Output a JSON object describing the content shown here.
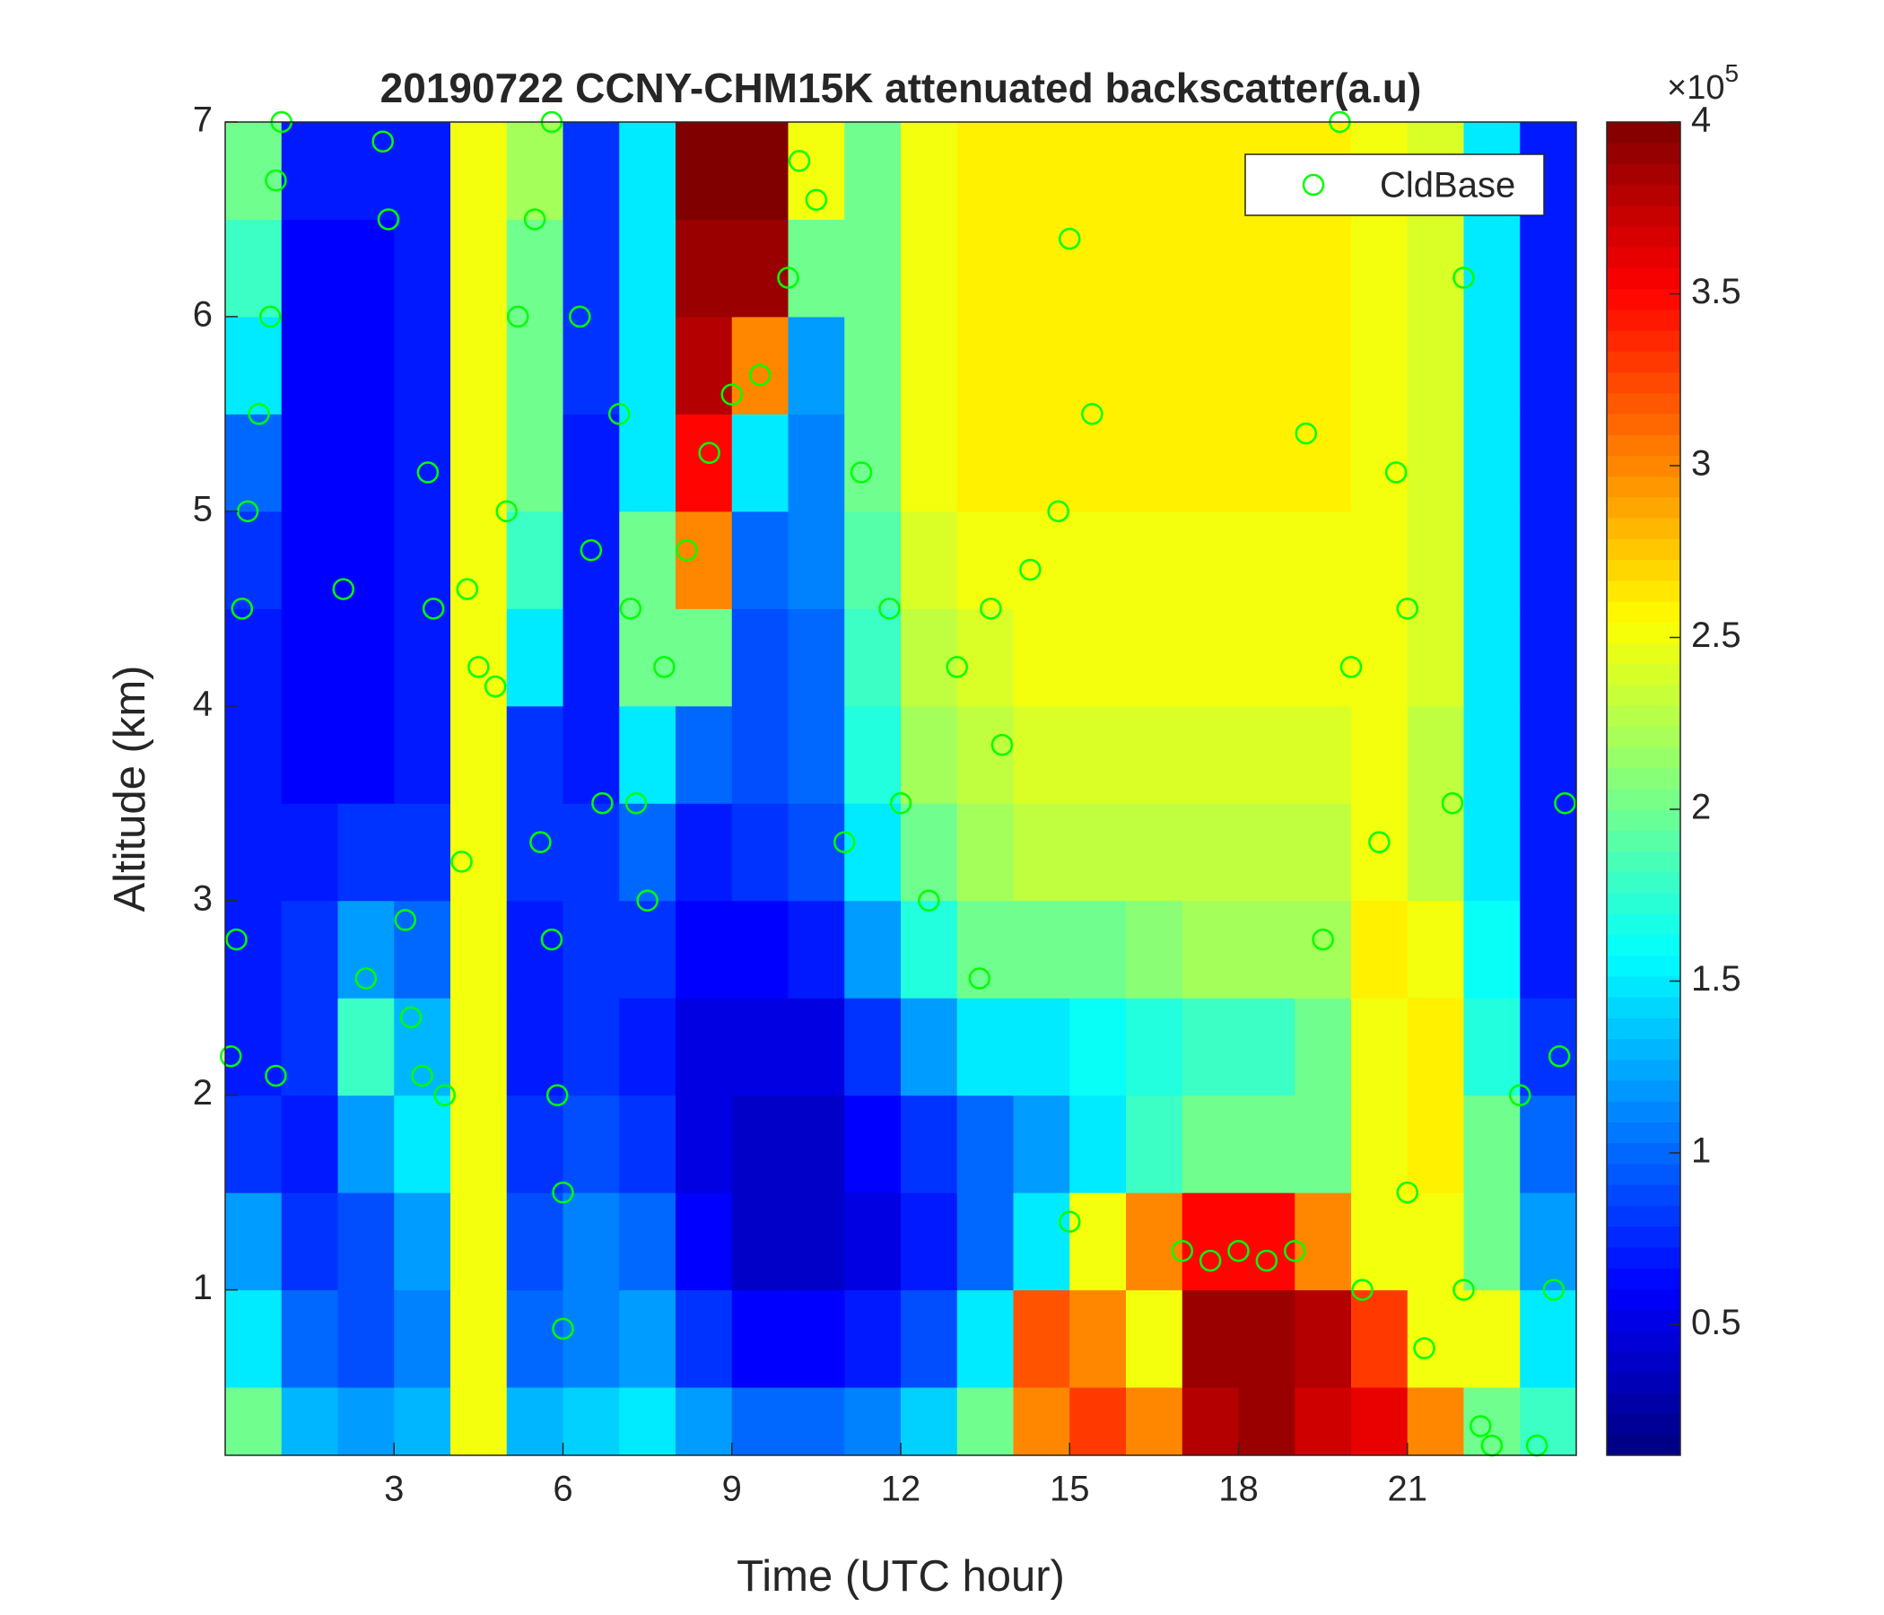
{
  "chart_data": {
    "type": "heatmap",
    "title": "20190722 CCNY-CHM15K attenuated backscatter(a.u)",
    "xlabel": "Time (UTC hour)",
    "ylabel": "Altitude (km)",
    "colormap": "jet",
    "xbins": [
      0,
      1,
      2,
      3,
      4,
      5,
      6,
      7,
      8,
      9,
      10,
      11,
      12,
      13,
      14,
      15,
      16,
      17,
      18,
      19,
      20,
      21,
      22,
      23,
      24
    ],
    "ybins": [
      0.15,
      0.5,
      1,
      1.5,
      2,
      2.5,
      3,
      3.5,
      4,
      4.5,
      5,
      5.5,
      6,
      6.5,
      7
    ],
    "z": [
      [
        200000,
        130000,
        120000,
        130000,
        250000,
        130000,
        140000,
        150000,
        120000,
        100000,
        100000,
        110000,
        140000,
        200000,
        300000,
        330000,
        300000,
        380000,
        390000,
        370000,
        360000,
        300000,
        200000,
        180000
      ],
      [
        150000,
        100000,
        90000,
        110000,
        250000,
        100000,
        110000,
        120000,
        80000,
        60000,
        60000,
        70000,
        90000,
        150000,
        320000,
        300000,
        250000,
        390000,
        390000,
        380000,
        330000,
        250000,
        250000,
        150000
      ],
      [
        120000,
        80000,
        90000,
        120000,
        250000,
        90000,
        110000,
        100000,
        60000,
        40000,
        40000,
        50000,
        70000,
        100000,
        150000,
        250000,
        300000,
        350000,
        350000,
        300000,
        250000,
        250000,
        200000,
        120000
      ],
      [
        80000,
        70000,
        120000,
        150000,
        250000,
        80000,
        90000,
        80000,
        50000,
        40000,
        40000,
        60000,
        80000,
        100000,
        120000,
        150000,
        180000,
        200000,
        200000,
        200000,
        250000,
        260000,
        200000,
        100000
      ],
      [
        70000,
        80000,
        180000,
        130000,
        250000,
        70000,
        80000,
        70000,
        50000,
        50000,
        50000,
        80000,
        120000,
        150000,
        150000,
        160000,
        170000,
        180000,
        180000,
        200000,
        250000,
        260000,
        170000,
        80000
      ],
      [
        70000,
        80000,
        120000,
        100000,
        250000,
        70000,
        80000,
        80000,
        60000,
        60000,
        70000,
        120000,
        170000,
        200000,
        200000,
        200000,
        210000,
        220000,
        220000,
        220000,
        260000,
        250000,
        160000,
        70000
      ],
      [
        70000,
        70000,
        80000,
        80000,
        250000,
        80000,
        80000,
        100000,
        70000,
        80000,
        90000,
        150000,
        200000,
        220000,
        230000,
        230000,
        230000,
        230000,
        230000,
        230000,
        250000,
        230000,
        150000,
        70000
      ],
      [
        70000,
        60000,
        60000,
        70000,
        250000,
        80000,
        70000,
        150000,
        100000,
        90000,
        100000,
        170000,
        220000,
        230000,
        240000,
        240000,
        240000,
        240000,
        240000,
        240000,
        250000,
        230000,
        150000,
        70000
      ],
      [
        70000,
        60000,
        60000,
        70000,
        250000,
        150000,
        70000,
        200000,
        200000,
        90000,
        100000,
        180000,
        230000,
        240000,
        250000,
        250000,
        250000,
        250000,
        250000,
        250000,
        250000,
        240000,
        150000,
        70000
      ],
      [
        80000,
        60000,
        60000,
        70000,
        250000,
        180000,
        70000,
        200000,
        300000,
        100000,
        110000,
        190000,
        240000,
        250000,
        250000,
        250000,
        250000,
        250000,
        250000,
        250000,
        250000,
        240000,
        150000,
        70000
      ],
      [
        100000,
        60000,
        60000,
        70000,
        250000,
        200000,
        70000,
        150000,
        350000,
        150000,
        110000,
        200000,
        250000,
        260000,
        260000,
        260000,
        260000,
        260000,
        260000,
        260000,
        250000,
        240000,
        150000,
        70000
      ],
      [
        150000,
        60000,
        60000,
        70000,
        250000,
        200000,
        80000,
        150000,
        380000,
        300000,
        120000,
        200000,
        250000,
        260000,
        260000,
        260000,
        260000,
        260000,
        260000,
        260000,
        250000,
        240000,
        150000,
        70000
      ],
      [
        180000,
        60000,
        60000,
        70000,
        250000,
        200000,
        80000,
        150000,
        390000,
        390000,
        200000,
        200000,
        250000,
        260000,
        260000,
        260000,
        260000,
        260000,
        260000,
        260000,
        250000,
        240000,
        150000,
        70000
      ],
      [
        200000,
        70000,
        70000,
        70000,
        250000,
        220000,
        80000,
        150000,
        400000,
        400000,
        250000,
        200000,
        250000,
        260000,
        260000,
        260000,
        260000,
        260000,
        260000,
        260000,
        250000,
        240000,
        150000,
        70000
      ]
    ],
    "xlim": [
      0,
      24
    ],
    "ylim": [
      0.15,
      7
    ],
    "xticks": [
      3,
      6,
      9,
      12,
      15,
      18,
      21
    ],
    "yticks": [
      1,
      2,
      3,
      4,
      5,
      6,
      7
    ],
    "clim": [
      12000,
      400000
    ],
    "cticks": [
      {
        "value": 50000,
        "label": "0.5"
      },
      {
        "value": 100000,
        "label": "1"
      },
      {
        "value": 150000,
        "label": "1.5"
      },
      {
        "value": 200000,
        "label": "2"
      },
      {
        "value": 250000,
        "label": "2.5"
      },
      {
        "value": 300000,
        "label": "3"
      },
      {
        "value": 350000,
        "label": "3.5"
      },
      {
        "value": 400000,
        "label": "4"
      }
    ],
    "cmultiplier": {
      "base": "×10",
      "exponent": "5"
    },
    "legend": "upper right",
    "series": [
      {
        "name": "CldBase",
        "color": "#00ff00",
        "x": [
          0.3,
          0.4,
          0.6,
          0.8,
          0.9,
          1,
          0.2,
          0.1,
          0.9,
          2.1,
          2.5,
          2.8,
          2.9,
          3.2,
          3.3,
          3.5,
          3.6,
          3.7,
          3.9,
          4.2,
          4.3,
          4.5,
          4.8,
          5,
          5.2,
          5.5,
          5.8,
          5.6,
          5.8,
          5.9,
          6,
          6,
          6.3,
          6.5,
          6.7,
          7,
          7.2,
          7.3,
          7.5,
          7.8,
          8.2,
          8.6,
          9,
          9.5,
          10,
          10.2,
          10.5,
          11,
          11.3,
          11.8,
          12,
          12.5,
          13,
          13.4,
          13.6,
          13.8,
          14.3,
          14.8,
          15,
          15.4,
          15,
          17,
          17.5,
          18,
          18.5,
          19,
          19.2,
          19.5,
          19.8,
          20,
          20.2,
          20.5,
          20.8,
          21,
          21,
          21.3,
          21.8,
          22,
          22,
          22.3,
          22.5,
          23,
          23.3,
          23.6,
          23.8,
          23.7
        ],
        "y": [
          4.5,
          5,
          5.5,
          6,
          6.7,
          7,
          2.8,
          2.2,
          2.1,
          4.6,
          2.6,
          6.9,
          6.5,
          2.9,
          2.4,
          2.1,
          5.2,
          4.5,
          2,
          3.2,
          4.6,
          4.2,
          4.1,
          5,
          6,
          6.5,
          7,
          3.3,
          2.8,
          2,
          1.5,
          0.8,
          6,
          4.8,
          3.5,
          5.5,
          4.5,
          3.5,
          3,
          4.2,
          4.8,
          5.3,
          5.6,
          5.7,
          6.2,
          6.8,
          6.6,
          3.3,
          5.2,
          4.5,
          3.5,
          3,
          4.2,
          2.6,
          4.5,
          3.8,
          4.7,
          5,
          6.4,
          5.5,
          1.35,
          1.2,
          1.15,
          1.2,
          1.15,
          1.2,
          5.4,
          2.8,
          7,
          4.2,
          1,
          3.3,
          5.2,
          4.5,
          1.5,
          0.7,
          3.5,
          6.2,
          1,
          0.3,
          0.2,
          2,
          0.2,
          1,
          3.5,
          2.2
        ]
      }
    ]
  }
}
